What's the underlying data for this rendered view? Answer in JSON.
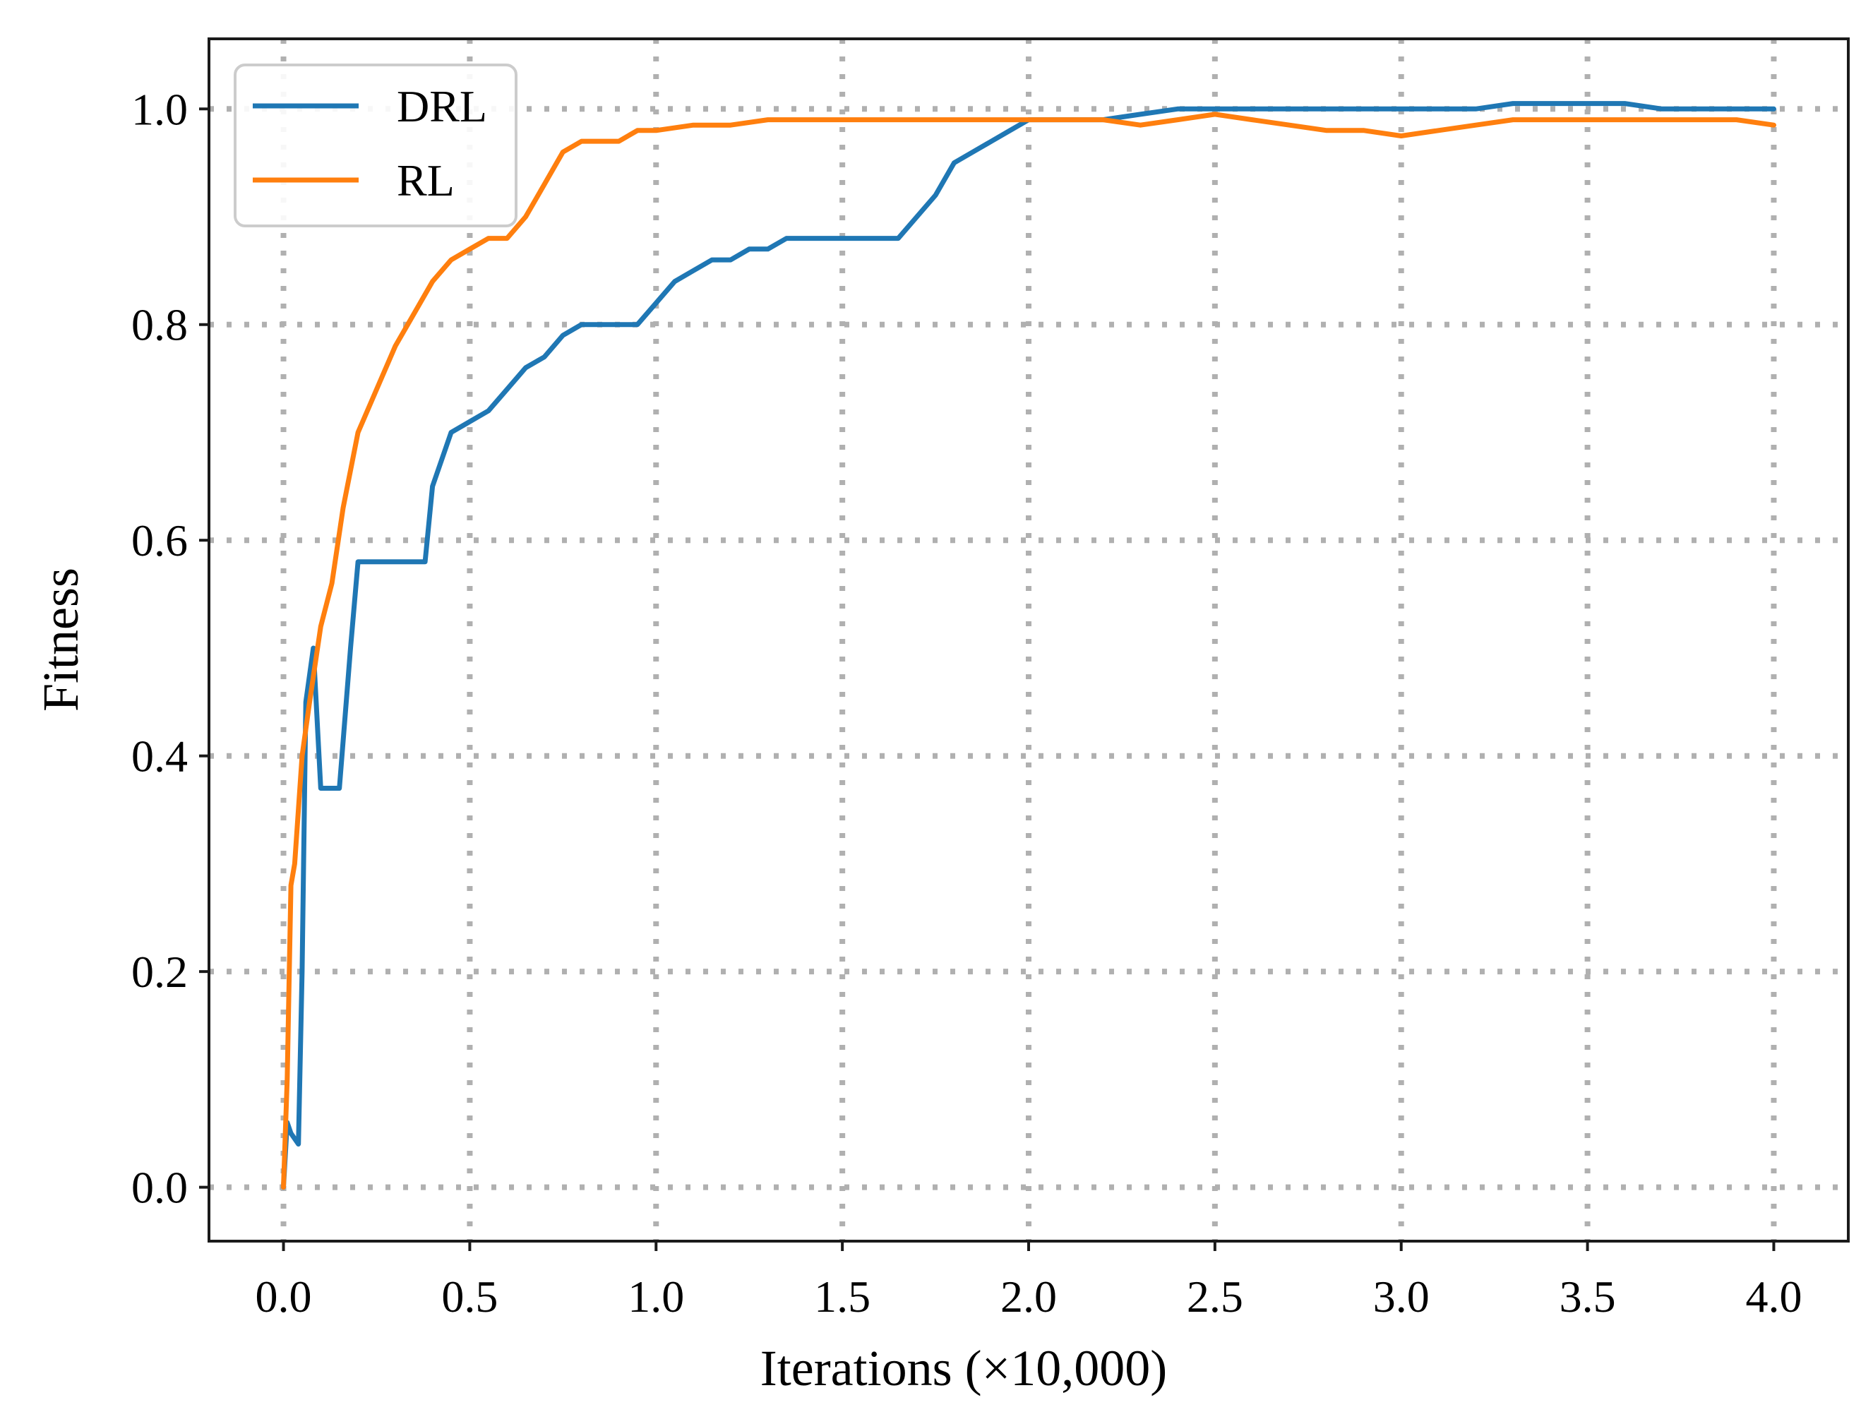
{
  "chart_data": {
    "type": "line",
    "title": "",
    "xlabel": "Iterations (×10,000)",
    "ylabel": "Fitness",
    "xlim": [
      -0.2,
      4.2
    ],
    "ylim": [
      -0.05,
      1.065
    ],
    "grid": true,
    "legend_position": "top-left",
    "xticks": [
      0.0,
      0.5,
      1.0,
      1.5,
      2.0,
      2.5,
      3.0,
      3.5,
      4.0
    ],
    "xtick_labels": [
      "0.0",
      "0.5",
      "1.0",
      "1.5",
      "2.0",
      "2.5",
      "3.0",
      "3.5",
      "4.0"
    ],
    "yticks": [
      0.0,
      0.2,
      0.4,
      0.6,
      0.8,
      1.0
    ],
    "ytick_labels": [
      "0.0",
      "0.2",
      "0.4",
      "0.6",
      "0.8",
      "1.0"
    ],
    "series": [
      {
        "name": "DRL",
        "color": "#1f77b4",
        "x": [
          0.0,
          0.01,
          0.02,
          0.04,
          0.05,
          0.06,
          0.08,
          0.1,
          0.12,
          0.15,
          0.18,
          0.2,
          0.25,
          0.3,
          0.35,
          0.38,
          0.4,
          0.45,
          0.5,
          0.55,
          0.6,
          0.65,
          0.7,
          0.75,
          0.8,
          0.85,
          0.9,
          0.95,
          1.0,
          1.05,
          1.1,
          1.15,
          1.2,
          1.25,
          1.3,
          1.35,
          1.4,
          1.45,
          1.5,
          1.55,
          1.6,
          1.65,
          1.7,
          1.75,
          1.8,
          1.85,
          1.9,
          1.95,
          2.0,
          2.1,
          2.2,
          2.3,
          2.4,
          2.5,
          2.6,
          2.7,
          2.8,
          2.9,
          3.0,
          3.1,
          3.2,
          3.3,
          3.4,
          3.5,
          3.6,
          3.7,
          3.8,
          3.9,
          4.0
        ],
        "y": [
          0.0,
          0.06,
          0.05,
          0.04,
          0.2,
          0.45,
          0.5,
          0.37,
          0.37,
          0.37,
          0.5,
          0.58,
          0.58,
          0.58,
          0.58,
          0.58,
          0.65,
          0.7,
          0.71,
          0.72,
          0.74,
          0.76,
          0.77,
          0.79,
          0.8,
          0.8,
          0.8,
          0.8,
          0.82,
          0.84,
          0.85,
          0.86,
          0.86,
          0.87,
          0.87,
          0.88,
          0.88,
          0.88,
          0.88,
          0.88,
          0.88,
          0.88,
          0.9,
          0.92,
          0.95,
          0.96,
          0.97,
          0.98,
          0.99,
          0.99,
          0.99,
          0.995,
          1.0,
          1.0,
          1.0,
          1.0,
          1.0,
          1.0,
          1.0,
          1.0,
          1.0,
          1.005,
          1.005,
          1.005,
          1.005,
          1.0,
          1.0,
          1.0,
          1.0
        ]
      },
      {
        "name": "RL",
        "color": "#ff7f0e",
        "x": [
          0.0,
          0.01,
          0.02,
          0.03,
          0.05,
          0.07,
          0.1,
          0.13,
          0.16,
          0.2,
          0.25,
          0.3,
          0.35,
          0.4,
          0.45,
          0.5,
          0.55,
          0.6,
          0.65,
          0.7,
          0.75,
          0.8,
          0.85,
          0.9,
          0.95,
          1.0,
          1.1,
          1.2,
          1.3,
          1.4,
          1.5,
          1.6,
          1.7,
          1.8,
          1.9,
          2.0,
          2.1,
          2.2,
          2.3,
          2.4,
          2.5,
          2.6,
          2.7,
          2.8,
          2.9,
          3.0,
          3.1,
          3.2,
          3.3,
          3.4,
          3.5,
          3.6,
          3.7,
          3.8,
          3.9,
          4.0
        ],
        "y": [
          0.0,
          0.1,
          0.28,
          0.3,
          0.4,
          0.45,
          0.52,
          0.56,
          0.63,
          0.7,
          0.74,
          0.78,
          0.81,
          0.84,
          0.86,
          0.87,
          0.88,
          0.88,
          0.9,
          0.93,
          0.96,
          0.97,
          0.97,
          0.97,
          0.98,
          0.98,
          0.985,
          0.985,
          0.99,
          0.99,
          0.99,
          0.99,
          0.99,
          0.99,
          0.99,
          0.99,
          0.99,
          0.99,
          0.985,
          0.99,
          0.995,
          0.99,
          0.985,
          0.98,
          0.98,
          0.975,
          0.98,
          0.985,
          0.99,
          0.99,
          0.99,
          0.99,
          0.99,
          0.99,
          0.99,
          0.985
        ]
      }
    ]
  }
}
